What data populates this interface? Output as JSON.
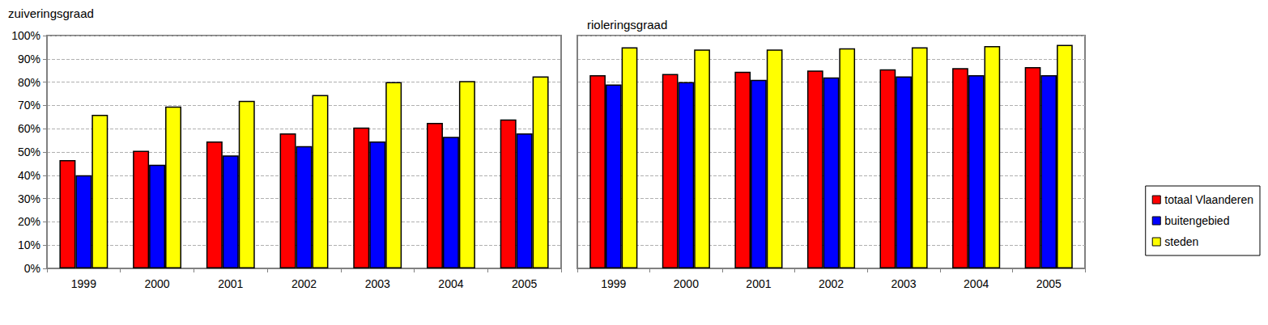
{
  "chart_data": [
    {
      "type": "bar",
      "title": "zuiveringsgraad",
      "categories": [
        "1999",
        "2000",
        "2001",
        "2002",
        "2003",
        "2004",
        "2005"
      ],
      "series": [
        {
          "name": "totaal Vlaanderen",
          "color": "#ff0000",
          "values": [
            46.5,
            50.5,
            54.5,
            58,
            60.5,
            62.5,
            64
          ]
        },
        {
          "name": "buitengebied",
          "color": "#0000ff",
          "values": [
            40,
            44.5,
            48.5,
            52.5,
            54.5,
            56.5,
            58
          ]
        },
        {
          "name": "steden",
          "color": "#ffff00",
          "values": [
            66,
            69.5,
            72,
            74.5,
            80,
            80.5,
            82.5
          ]
        }
      ],
      "ylim": [
        0,
        100
      ],
      "yticks": [
        {
          "value": 0,
          "label": "0%"
        },
        {
          "value": 10,
          "label": "10%"
        },
        {
          "value": 20,
          "label": "20%"
        },
        {
          "value": 30,
          "label": "30%"
        },
        {
          "value": 40,
          "label": "40%"
        },
        {
          "value": 50,
          "label": "50%"
        },
        {
          "value": 60,
          "label": "60%"
        },
        {
          "value": 70,
          "label": "70%"
        },
        {
          "value": 80,
          "label": "80%"
        },
        {
          "value": 90,
          "label": "90%"
        },
        {
          "value": 100,
          "label": "100%"
        }
      ],
      "grid": true
    },
    {
      "type": "bar",
      "title": "rioleringsgraad",
      "categories": [
        "1999",
        "2000",
        "2001",
        "2002",
        "2003",
        "2004",
        "2005"
      ],
      "series": [
        {
          "name": "totaal Vlaanderen",
          "color": "#ff0000",
          "values": [
            83,
            83.5,
            84.5,
            85,
            85.5,
            86,
            86.5
          ]
        },
        {
          "name": "buitengebied",
          "color": "#0000ff",
          "values": [
            79,
            80,
            81,
            82,
            82.5,
            83,
            83
          ]
        },
        {
          "name": "steden",
          "color": "#ffff00",
          "values": [
            95,
            94,
            94,
            94.5,
            95,
            95.5,
            96
          ]
        }
      ],
      "ylim": [
        0,
        100
      ],
      "yticks": [
        0,
        10,
        20,
        30,
        40,
        50,
        60,
        70,
        80,
        90,
        100
      ],
      "grid": true,
      "tick_labels": "x",
      "legend": "right"
    }
  ]
}
